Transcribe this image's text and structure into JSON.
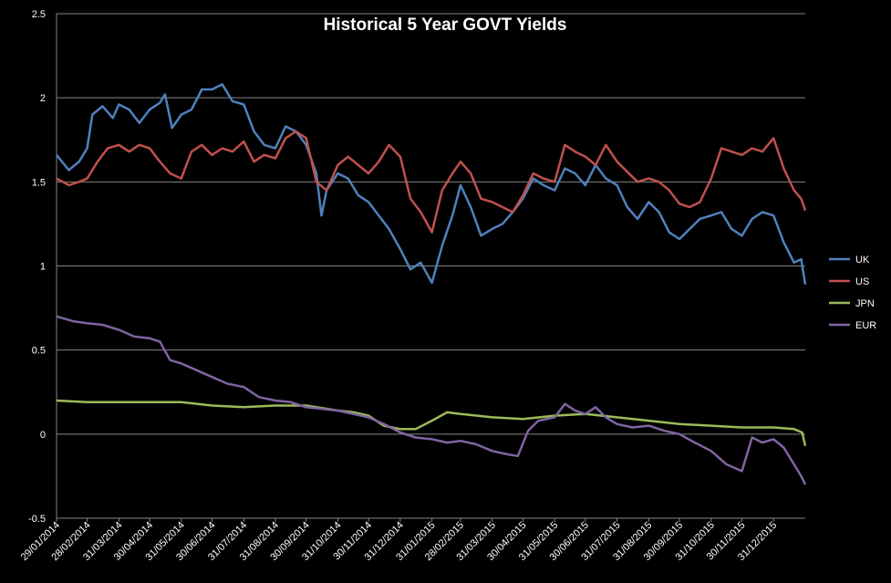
{
  "chart_data": {
    "type": "line",
    "title": "Historical 5 Year GOVT Yields",
    "xlabel": "",
    "ylabel": "",
    "ylim": [
      -0.5,
      2.5
    ],
    "yticks": [
      "2.5",
      "2",
      "1.5",
      "1",
      "0.5",
      "0",
      "-0.5"
    ],
    "grid": true,
    "legend_position": "right",
    "x_start": "29/01/2014",
    "x_end": "31/01/2016",
    "xtick_labels": [
      "29/01/2014",
      "28/02/2014",
      "31/03/2014",
      "30/04/2014",
      "31/05/2014",
      "30/06/2014",
      "31/07/2014",
      "31/08/2014",
      "30/09/2014",
      "31/10/2014",
      "30/11/2014",
      "31/12/2014",
      "31/01/2015",
      "28/02/2015",
      "31/03/2015",
      "30/04/2015",
      "31/05/2015",
      "30/06/2015",
      "31/07/2015",
      "31/08/2015",
      "30/09/2015",
      "31/10/2015",
      "30/11/2015",
      "31/12/2015"
    ],
    "series": [
      {
        "name": "UK",
        "color": "#4f81bd",
        "points": [
          [
            "29/01/2014",
            1.66
          ],
          [
            "10/02/2014",
            1.57
          ],
          [
            "20/02/2014",
            1.62
          ],
          [
            "28/02/2014",
            1.7
          ],
          [
            "05/03/2014",
            1.9
          ],
          [
            "15/03/2014",
            1.95
          ],
          [
            "25/03/2014",
            1.88
          ],
          [
            "31/03/2014",
            1.96
          ],
          [
            "10/04/2014",
            1.93
          ],
          [
            "20/04/2014",
            1.85
          ],
          [
            "30/04/2014",
            1.93
          ],
          [
            "10/05/2014",
            1.97
          ],
          [
            "15/05/2014",
            2.02
          ],
          [
            "22/05/2014",
            1.82
          ],
          [
            "31/05/2014",
            1.9
          ],
          [
            "10/06/2014",
            1.93
          ],
          [
            "20/06/2014",
            2.05
          ],
          [
            "30/06/2014",
            2.05
          ],
          [
            "10/07/2014",
            2.08
          ],
          [
            "20/07/2014",
            1.98
          ],
          [
            "31/07/2014",
            1.96
          ],
          [
            "10/08/2014",
            1.8
          ],
          [
            "20/08/2014",
            1.72
          ],
          [
            "31/08/2014",
            1.7
          ],
          [
            "10/09/2014",
            1.83
          ],
          [
            "20/09/2014",
            1.8
          ],
          [
            "30/09/2014",
            1.72
          ],
          [
            "10/10/2014",
            1.55
          ],
          [
            "15/10/2014",
            1.3
          ],
          [
            "20/10/2014",
            1.45
          ],
          [
            "31/10/2014",
            1.55
          ],
          [
            "10/11/2014",
            1.52
          ],
          [
            "20/11/2014",
            1.42
          ],
          [
            "30/11/2014",
            1.38
          ],
          [
            "10/12/2014",
            1.3
          ],
          [
            "20/12/2014",
            1.22
          ],
          [
            "31/12/2014",
            1.1
          ],
          [
            "10/01/2015",
            0.98
          ],
          [
            "20/01/2015",
            1.02
          ],
          [
            "31/01/2015",
            0.9
          ],
          [
            "10/02/2015",
            1.12
          ],
          [
            "20/02/2015",
            1.3
          ],
          [
            "28/02/2015",
            1.48
          ],
          [
            "10/03/2015",
            1.35
          ],
          [
            "20/03/2015",
            1.18
          ],
          [
            "31/03/2015",
            1.22
          ],
          [
            "10/04/2015",
            1.25
          ],
          [
            "20/04/2015",
            1.32
          ],
          [
            "30/04/2015",
            1.4
          ],
          [
            "10/05/2015",
            1.52
          ],
          [
            "20/05/2015",
            1.48
          ],
          [
            "31/05/2015",
            1.45
          ],
          [
            "10/06/2015",
            1.58
          ],
          [
            "20/06/2015",
            1.55
          ],
          [
            "30/06/2015",
            1.48
          ],
          [
            "10/07/2015",
            1.6
          ],
          [
            "20/07/2015",
            1.52
          ],
          [
            "31/07/2015",
            1.48
          ],
          [
            "10/08/2015",
            1.35
          ],
          [
            "20/08/2015",
            1.28
          ],
          [
            "31/08/2015",
            1.38
          ],
          [
            "10/09/2015",
            1.32
          ],
          [
            "20/09/2015",
            1.2
          ],
          [
            "30/09/2015",
            1.16
          ],
          [
            "10/10/2015",
            1.22
          ],
          [
            "20/10/2015",
            1.28
          ],
          [
            "31/10/2015",
            1.3
          ],
          [
            "10/11/2015",
            1.32
          ],
          [
            "20/11/2015",
            1.22
          ],
          [
            "30/11/2015",
            1.18
          ],
          [
            "10/12/2015",
            1.28
          ],
          [
            "20/12/2015",
            1.32
          ],
          [
            "31/12/2015",
            1.3
          ],
          [
            "10/01/2016",
            1.14
          ],
          [
            "20/01/2016",
            1.02
          ],
          [
            "27/01/2016",
            1.04
          ],
          [
            "31/01/2016",
            0.89
          ]
        ]
      },
      {
        "name": "US",
        "color": "#c0504d",
        "points": [
          [
            "29/01/2014",
            1.52
          ],
          [
            "10/02/2014",
            1.48
          ],
          [
            "20/02/2014",
            1.5
          ],
          [
            "28/02/2014",
            1.52
          ],
          [
            "10/03/2014",
            1.62
          ],
          [
            "20/03/2014",
            1.7
          ],
          [
            "31/03/2014",
            1.72
          ],
          [
            "10/04/2014",
            1.68
          ],
          [
            "20/04/2014",
            1.72
          ],
          [
            "30/04/2014",
            1.7
          ],
          [
            "10/05/2014",
            1.62
          ],
          [
            "20/05/2014",
            1.55
          ],
          [
            "31/05/2014",
            1.52
          ],
          [
            "10/06/2014",
            1.68
          ],
          [
            "20/06/2014",
            1.72
          ],
          [
            "30/06/2014",
            1.66
          ],
          [
            "10/07/2014",
            1.7
          ],
          [
            "20/07/2014",
            1.68
          ],
          [
            "31/07/2014",
            1.74
          ],
          [
            "10/08/2014",
            1.62
          ],
          [
            "20/08/2014",
            1.66
          ],
          [
            "31/08/2014",
            1.64
          ],
          [
            "10/09/2014",
            1.76
          ],
          [
            "20/09/2014",
            1.8
          ],
          [
            "30/09/2014",
            1.76
          ],
          [
            "10/10/2014",
            1.5
          ],
          [
            "20/10/2014",
            1.45
          ],
          [
            "31/10/2014",
            1.6
          ],
          [
            "10/11/2014",
            1.65
          ],
          [
            "20/11/2014",
            1.6
          ],
          [
            "30/11/2014",
            1.55
          ],
          [
            "10/12/2014",
            1.62
          ],
          [
            "20/12/2014",
            1.72
          ],
          [
            "31/12/2014",
            1.65
          ],
          [
            "10/01/2015",
            1.4
          ],
          [
            "20/01/2015",
            1.32
          ],
          [
            "31/01/2015",
            1.2
          ],
          [
            "10/02/2015",
            1.45
          ],
          [
            "20/02/2015",
            1.55
          ],
          [
            "28/02/2015",
            1.62
          ],
          [
            "10/03/2015",
            1.55
          ],
          [
            "20/03/2015",
            1.4
          ],
          [
            "31/03/2015",
            1.38
          ],
          [
            "10/04/2015",
            1.35
          ],
          [
            "20/04/2015",
            1.32
          ],
          [
            "30/04/2015",
            1.42
          ],
          [
            "10/05/2015",
            1.55
          ],
          [
            "20/05/2015",
            1.52
          ],
          [
            "31/05/2015",
            1.5
          ],
          [
            "10/06/2015",
            1.72
          ],
          [
            "20/06/2015",
            1.68
          ],
          [
            "30/06/2015",
            1.65
          ],
          [
            "10/07/2015",
            1.6
          ],
          [
            "20/07/2015",
            1.72
          ],
          [
            "31/07/2015",
            1.62
          ],
          [
            "10/08/2015",
            1.56
          ],
          [
            "20/08/2015",
            1.5
          ],
          [
            "31/08/2015",
            1.52
          ],
          [
            "10/09/2015",
            1.5
          ],
          [
            "20/09/2015",
            1.45
          ],
          [
            "30/09/2015",
            1.37
          ],
          [
            "10/10/2015",
            1.35
          ],
          [
            "20/10/2015",
            1.38
          ],
          [
            "31/10/2015",
            1.52
          ],
          [
            "10/11/2015",
            1.7
          ],
          [
            "20/11/2015",
            1.68
          ],
          [
            "30/11/2015",
            1.66
          ],
          [
            "10/12/2015",
            1.7
          ],
          [
            "20/12/2015",
            1.68
          ],
          [
            "31/12/2015",
            1.76
          ],
          [
            "10/01/2016",
            1.58
          ],
          [
            "20/01/2016",
            1.45
          ],
          [
            "27/01/2016",
            1.4
          ],
          [
            "31/01/2016",
            1.33
          ]
        ]
      },
      {
        "name": "JPN",
        "color": "#9bbb59",
        "points": [
          [
            "29/01/2014",
            0.2
          ],
          [
            "28/02/2014",
            0.19
          ],
          [
            "31/03/2014",
            0.19
          ],
          [
            "30/04/2014",
            0.19
          ],
          [
            "31/05/2014",
            0.19
          ],
          [
            "30/06/2014",
            0.17
          ],
          [
            "31/07/2014",
            0.16
          ],
          [
            "31/08/2014",
            0.17
          ],
          [
            "30/09/2014",
            0.17
          ],
          [
            "31/10/2014",
            0.14
          ],
          [
            "15/11/2014",
            0.13
          ],
          [
            "30/11/2014",
            0.11
          ],
          [
            "15/12/2014",
            0.05
          ],
          [
            "31/12/2014",
            0.03
          ],
          [
            "15/01/2015",
            0.03
          ],
          [
            "31/01/2015",
            0.08
          ],
          [
            "15/02/2015",
            0.13
          ],
          [
            "28/02/2015",
            0.12
          ],
          [
            "31/03/2015",
            0.1
          ],
          [
            "30/04/2015",
            0.09
          ],
          [
            "31/05/2015",
            0.11
          ],
          [
            "30/06/2015",
            0.12
          ],
          [
            "31/07/2015",
            0.1
          ],
          [
            "31/08/2015",
            0.08
          ],
          [
            "30/09/2015",
            0.06
          ],
          [
            "31/10/2015",
            0.05
          ],
          [
            "30/11/2015",
            0.04
          ],
          [
            "31/12/2015",
            0.04
          ],
          [
            "20/01/2016",
            0.03
          ],
          [
            "28/01/2016",
            0.01
          ],
          [
            "31/01/2016",
            -0.07
          ]
        ]
      },
      {
        "name": "EUR",
        "color": "#8064a2",
        "points": [
          [
            "29/01/2014",
            0.7
          ],
          [
            "15/02/2014",
            0.67
          ],
          [
            "28/02/2014",
            0.66
          ],
          [
            "15/03/2014",
            0.65
          ],
          [
            "31/03/2014",
            0.62
          ],
          [
            "15/04/2014",
            0.58
          ],
          [
            "30/04/2014",
            0.57
          ],
          [
            "10/05/2014",
            0.55
          ],
          [
            "20/05/2014",
            0.44
          ],
          [
            "31/05/2014",
            0.42
          ],
          [
            "15/06/2014",
            0.38
          ],
          [
            "30/06/2014",
            0.34
          ],
          [
            "15/07/2014",
            0.3
          ],
          [
            "31/07/2014",
            0.28
          ],
          [
            "15/08/2014",
            0.22
          ],
          [
            "31/08/2014",
            0.2
          ],
          [
            "15/09/2014",
            0.19
          ],
          [
            "30/09/2014",
            0.16
          ],
          [
            "31/10/2014",
            0.14
          ],
          [
            "15/11/2014",
            0.12
          ],
          [
            "30/11/2014",
            0.1
          ],
          [
            "15/12/2014",
            0.06
          ],
          [
            "31/12/2014",
            0.01
          ],
          [
            "15/01/2015",
            -0.02
          ],
          [
            "31/01/2015",
            -0.03
          ],
          [
            "15/02/2015",
            -0.05
          ],
          [
            "28/02/2015",
            -0.04
          ],
          [
            "15/03/2015",
            -0.06
          ],
          [
            "31/03/2015",
            -0.1
          ],
          [
            "15/04/2015",
            -0.12
          ],
          [
            "25/04/2015",
            -0.13
          ],
          [
            "05/05/2015",
            0.02
          ],
          [
            "15/05/2015",
            0.08
          ],
          [
            "31/05/2015",
            0.1
          ],
          [
            "10/06/2015",
            0.18
          ],
          [
            "20/06/2015",
            0.14
          ],
          [
            "30/06/2015",
            0.12
          ],
          [
            "10/07/2015",
            0.16
          ],
          [
            "20/07/2015",
            0.1
          ],
          [
            "31/07/2015",
            0.06
          ],
          [
            "15/08/2015",
            0.04
          ],
          [
            "31/08/2015",
            0.05
          ],
          [
            "15/09/2015",
            0.02
          ],
          [
            "30/09/2015",
            0.0
          ],
          [
            "15/10/2015",
            -0.05
          ],
          [
            "31/10/2015",
            -0.1
          ],
          [
            "15/11/2015",
            -0.18
          ],
          [
            "30/11/2015",
            -0.22
          ],
          [
            "10/12/2015",
            -0.02
          ],
          [
            "20/12/2015",
            -0.05
          ],
          [
            "31/12/2015",
            -0.03
          ],
          [
            "10/01/2016",
            -0.08
          ],
          [
            "20/01/2016",
            -0.18
          ],
          [
            "27/01/2016",
            -0.25
          ],
          [
            "31/01/2016",
            -0.3
          ]
        ]
      }
    ]
  }
}
